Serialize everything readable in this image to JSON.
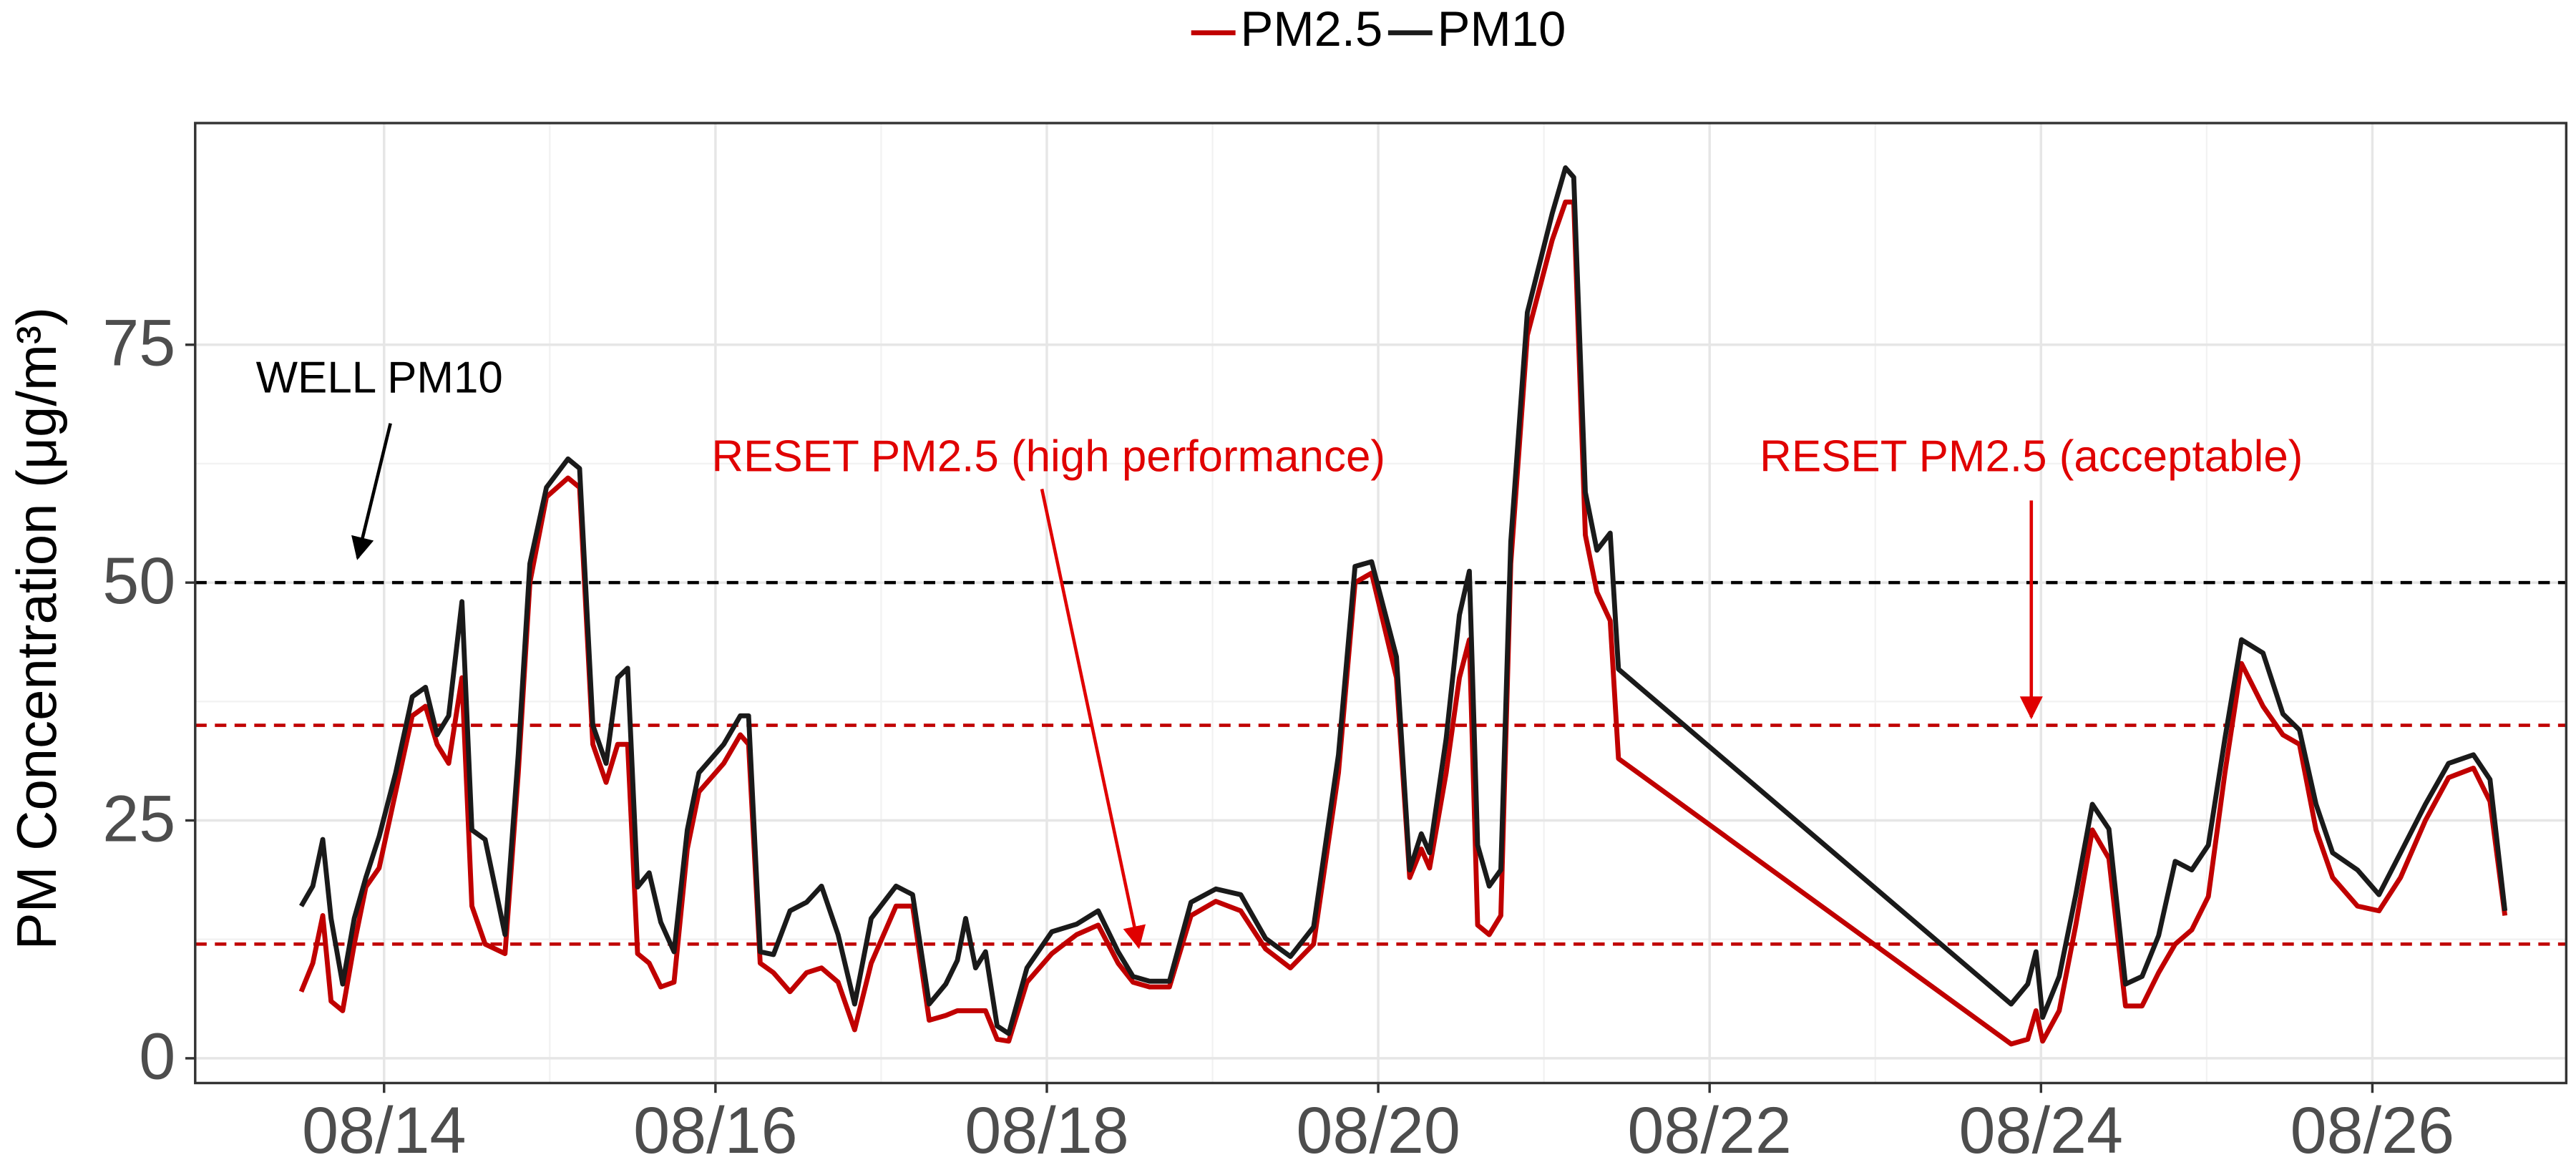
{
  "chart_data": {
    "type": "line",
    "y_label": "PM Concentration (μg/m³)",
    "x": [
      13.5,
      13.57,
      13.63,
      13.68,
      13.75,
      13.82,
      13.89,
      13.97,
      14.07,
      14.17,
      14.25,
      14.32,
      14.39,
      14.47,
      14.53,
      14.61,
      14.73,
      14.81,
      14.88,
      14.98,
      15.11,
      15.18,
      15.26,
      15.34,
      15.41,
      15.47,
      15.53,
      15.6,
      15.67,
      15.75,
      15.83,
      15.9,
      16.05,
      16.15,
      16.2,
      16.27,
      16.35,
      16.45,
      16.55,
      16.64,
      16.74,
      16.84,
      16.94,
      17.09,
      17.19,
      17.29,
      17.39,
      17.46,
      17.51,
      17.57,
      17.63,
      17.7,
      17.77,
      17.88,
      18.03,
      18.18,
      18.31,
      18.43,
      18.52,
      18.62,
      18.74,
      18.87,
      19.02,
      19.17,
      19.32,
      19.47,
      19.61,
      19.76,
      19.86,
      19.96,
      20.11,
      20.19,
      20.26,
      20.31,
      20.41,
      20.49,
      20.55,
      20.6,
      20.67,
      20.74,
      20.8,
      20.9,
      21.05,
      21.13,
      21.18,
      21.25,
      21.32,
      21.4,
      21.45,
      23.82,
      23.92,
      23.97,
      24.01,
      24.11,
      24.21,
      24.31,
      24.41,
      24.51,
      24.61,
      24.71,
      24.81,
      24.91,
      25.01,
      25.11,
      25.21,
      25.34,
      25.46,
      25.56,
      25.66,
      25.76,
      25.91,
      26.04,
      26.17,
      26.32,
      26.46,
      26.61,
      26.71,
      26.8
    ],
    "series": [
      {
        "name": "PM2.5",
        "color": "#c00000",
        "values": [
          7,
          10,
          15,
          6,
          5,
          12,
          18,
          20,
          28,
          36,
          37,
          33,
          31,
          40,
          16,
          12,
          11,
          30,
          50,
          59,
          61,
          60,
          33,
          29,
          33,
          33,
          11,
          10,
          7.5,
          8,
          22,
          28,
          31,
          34,
          33,
          10,
          9,
          7,
          9,
          9.5,
          8,
          3,
          10,
          16,
          16,
          4,
          4.5,
          5,
          5,
          5,
          5,
          2,
          1.8,
          8,
          11,
          13,
          14,
          10,
          8,
          7.5,
          7.5,
          15,
          16.5,
          15.5,
          11.5,
          9.5,
          12,
          30,
          50,
          51,
          40,
          19,
          22,
          20,
          30,
          40,
          44,
          14,
          13,
          15,
          52,
          76,
          86,
          90,
          90,
          55,
          49,
          46,
          31.5,
          1.5,
          2,
          5,
          1.8,
          5,
          14,
          24,
          21,
          5.5,
          5.5,
          9,
          12,
          13.5,
          17,
          30,
          41.5,
          37,
          34,
          33,
          24,
          19,
          16,
          15.5,
          19,
          25,
          29.5,
          30.5,
          27,
          15
        ]
      },
      {
        "name": "PM10",
        "color": "#1a1a1a",
        "values": [
          16,
          18.1,
          23,
          14.7,
          7.8,
          14.7,
          19,
          23.3,
          30,
          38,
          39,
          34,
          36,
          48,
          24,
          23,
          13,
          32,
          52,
          60,
          63,
          62,
          35,
          31,
          40,
          41,
          18,
          19.5,
          14.3,
          11.2,
          24,
          30,
          33,
          36,
          36,
          11.2,
          10.9,
          15.5,
          16.4,
          18.1,
          13,
          5.7,
          14.7,
          18.1,
          17.2,
          5.7,
          7.8,
          10.3,
          14.7,
          9.5,
          11.2,
          3.4,
          2.6,
          9.5,
          13.3,
          14.1,
          15.5,
          11.2,
          8.6,
          8.1,
          8.1,
          16.4,
          17.8,
          17.2,
          12.6,
          10.7,
          13.8,
          31.9,
          51.7,
          52.2,
          42.2,
          19.8,
          23.6,
          21.6,
          33.6,
          46.6,
          51.2,
          22.4,
          18.1,
          19.8,
          54.3,
          78.4,
          88.8,
          93.6,
          92.6,
          59.5,
          53.4,
          55.2,
          40.9,
          5.7,
          7.8,
          11.2,
          4.3,
          8.6,
          17.2,
          26.7,
          24.1,
          7.8,
          8.6,
          12.9,
          20.7,
          19.8,
          22.4,
          33.6,
          44,
          42.6,
          36.2,
          34.5,
          26.7,
          21.6,
          19.8,
          17.2,
          21.6,
          26.7,
          31,
          31.9,
          29.3,
          15.5
        ]
      }
    ],
    "hlines": [
      {
        "value": 50,
        "color": "#000000"
      },
      {
        "value": 35,
        "color": "#c00000"
      },
      {
        "value": 12,
        "color": "#c00000"
      }
    ],
    "annotations": [
      {
        "text": "WELL PM10",
        "color": "#000000"
      },
      {
        "text": "RESET PM2.5 (high performance)",
        "color": "#e00000"
      },
      {
        "text": "RESET PM2.5 (acceptable)",
        "color": "#e00000"
      }
    ],
    "xlim": [
      12.86,
      27.17
    ],
    "xticks": [
      {
        "value": 14,
        "label": "08/14"
      },
      {
        "value": 16,
        "label": "08/16"
      },
      {
        "value": 18,
        "label": "08/18"
      },
      {
        "value": 20,
        "label": "08/20"
      },
      {
        "value": 22,
        "label": "08/22"
      },
      {
        "value": 24,
        "label": "08/24"
      },
      {
        "value": 26,
        "label": "08/26"
      }
    ],
    "ylim": [
      -2.6,
      98.3
    ],
    "yticks": [
      0,
      25,
      50,
      75
    ],
    "grid": true,
    "legend": "top"
  }
}
